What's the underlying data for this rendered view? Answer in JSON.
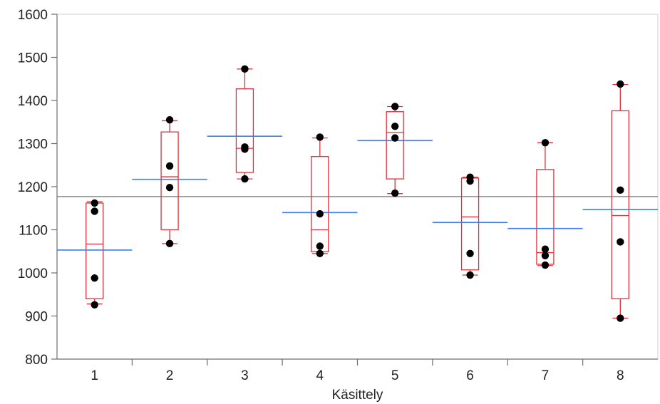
{
  "chart_data": {
    "type": "box",
    "xlabel": "Käsittely",
    "ylabel": "",
    "ylim": [
      800,
      1600
    ],
    "yticks": [
      800,
      900,
      1000,
      1100,
      1200,
      1300,
      1400,
      1500,
      1600
    ],
    "categories": [
      "1",
      "2",
      "3",
      "4",
      "5",
      "6",
      "7",
      "8"
    ],
    "grand_mean": 1177,
    "boxes": [
      {
        "category": "1",
        "min": 928,
        "q1": 940,
        "median": 1067,
        "q3": 1162,
        "max": 1165,
        "mean": 1053,
        "points": [
          1162,
          1143,
          988,
          926
        ]
      },
      {
        "category": "2",
        "min": 1068,
        "q1": 1100,
        "median": 1223,
        "q3": 1327,
        "max": 1353,
        "mean": 1217,
        "points": [
          1355,
          1248,
          1198,
          1068
        ]
      },
      {
        "category": "3",
        "min": 1218,
        "q1": 1233,
        "median": 1289,
        "q3": 1427,
        "max": 1473,
        "mean": 1317,
        "points": [
          1473,
          1292,
          1287,
          1218
        ]
      },
      {
        "category": "4",
        "min": 1045,
        "q1": 1049,
        "median": 1100,
        "q3": 1270,
        "max": 1313,
        "mean": 1140,
        "points": [
          1315,
          1137,
          1062,
          1045
        ]
      },
      {
        "category": "5",
        "min": 1184,
        "q1": 1218,
        "median": 1326,
        "q3": 1374,
        "max": 1386,
        "mean": 1307,
        "points": [
          1386,
          1340,
          1313,
          1185
        ]
      },
      {
        "category": "6",
        "min": 995,
        "q1": 1007,
        "median": 1130,
        "q3": 1220,
        "max": 1222,
        "mean": 1117,
        "points": [
          1222,
          1213,
          1045,
          995
        ]
      },
      {
        "category": "7",
        "min": 1017,
        "q1": 1020,
        "median": 1047,
        "q3": 1240,
        "max": 1302,
        "mean": 1103,
        "points": [
          1302,
          1055,
          1040,
          1018
        ]
      },
      {
        "category": "8",
        "min": 895,
        "q1": 940,
        "median": 1133,
        "q3": 1376,
        "max": 1437,
        "mean": 1147,
        "points": [
          1438,
          1192,
          1072,
          895
        ]
      }
    ],
    "colors": {
      "box": "#e0303c",
      "mean_line": "#3c7fe8",
      "grand_mean_line": "#8c8c8c",
      "point": "#000000",
      "axis": "#6e6e6e"
    },
    "grid": false
  }
}
